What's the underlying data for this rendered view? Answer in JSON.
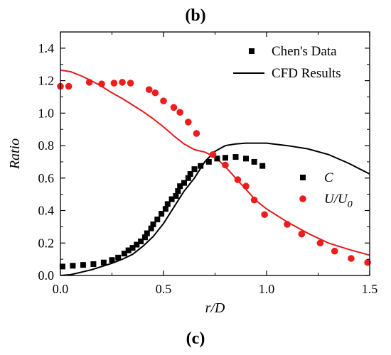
{
  "panel_label_top": "(b)",
  "panel_label_bottom": "(c)",
  "chart_data": {
    "type": "scatter",
    "title": "",
    "xlabel": "r/D",
    "ylabel": "Ratio",
    "xlim": [
      0,
      1.5
    ],
    "ylim": [
      0,
      1.5
    ],
    "xticks": [
      "0.0",
      "0.5",
      "1.0",
      "1.5"
    ],
    "yticks": [
      "0.0",
      "0.2",
      "0.4",
      "0.6",
      "0.8",
      "1.0",
      "1.2",
      "1.4"
    ],
    "grid": false,
    "legends": [
      {
        "position": "top-right",
        "entries": [
          {
            "label": "Chen's Data",
            "marker": "square",
            "color": "#000000"
          },
          {
            "label": "CFD Results",
            "marker": "line",
            "color": "#000000"
          }
        ]
      },
      {
        "position": "middle-right",
        "entries": [
          {
            "label_main": "C",
            "label_sub": "",
            "marker": "square",
            "color": "#000000"
          },
          {
            "label_main": "U/U",
            "label_sub": "0",
            "marker": "circle",
            "color": "#ee1c1c"
          }
        ]
      }
    ],
    "series": [
      {
        "marker": "square",
        "color": "#000000",
        "points": [
          [
            0.01,
            0.055
          ],
          [
            0.06,
            0.06
          ],
          [
            0.11,
            0.065
          ],
          [
            0.16,
            0.07
          ],
          [
            0.21,
            0.08
          ],
          [
            0.25,
            0.095
          ],
          [
            0.28,
            0.11
          ],
          [
            0.31,
            0.135
          ],
          [
            0.33,
            0.155
          ],
          [
            0.35,
            0.17
          ],
          [
            0.37,
            0.19
          ],
          [
            0.39,
            0.21
          ],
          [
            0.41,
            0.235
          ],
          [
            0.42,
            0.26
          ],
          [
            0.44,
            0.29
          ],
          [
            0.45,
            0.315
          ],
          [
            0.47,
            0.345
          ],
          [
            0.49,
            0.38
          ],
          [
            0.51,
            0.41
          ],
          [
            0.52,
            0.44
          ],
          [
            0.54,
            0.47
          ],
          [
            0.56,
            0.49
          ],
          [
            0.57,
            0.52
          ],
          [
            0.58,
            0.55
          ],
          [
            0.6,
            0.57
          ],
          [
            0.62,
            0.6
          ],
          [
            0.63,
            0.625
          ],
          [
            0.65,
            0.655
          ],
          [
            0.68,
            0.675
          ],
          [
            0.72,
            0.7
          ],
          [
            0.76,
            0.72
          ],
          [
            0.8,
            0.725
          ],
          [
            0.85,
            0.73
          ],
          [
            0.9,
            0.72
          ],
          [
            0.94,
            0.7
          ],
          [
            0.98,
            0.675
          ]
        ]
      },
      {
        "marker": "line",
        "color": "#000000",
        "points": [
          [
            0.0,
            0.0
          ],
          [
            0.05,
            0.005
          ],
          [
            0.1,
            0.02
          ],
          [
            0.15,
            0.035
          ],
          [
            0.2,
            0.055
          ],
          [
            0.25,
            0.075
          ],
          [
            0.3,
            0.1
          ],
          [
            0.35,
            0.13
          ],
          [
            0.4,
            0.18
          ],
          [
            0.45,
            0.24
          ],
          [
            0.5,
            0.32
          ],
          [
            0.55,
            0.42
          ],
          [
            0.6,
            0.52
          ],
          [
            0.65,
            0.6
          ],
          [
            0.7,
            0.7
          ],
          [
            0.75,
            0.765
          ],
          [
            0.8,
            0.8
          ],
          [
            0.85,
            0.81
          ],
          [
            0.9,
            0.815
          ],
          [
            1.0,
            0.815
          ],
          [
            1.1,
            0.8
          ],
          [
            1.2,
            0.78
          ],
          [
            1.3,
            0.745
          ],
          [
            1.4,
            0.69
          ],
          [
            1.5,
            0.625
          ]
        ]
      },
      {
        "marker": "circle",
        "color": "#ee1c1c",
        "points": [
          [
            0.0,
            1.165
          ],
          [
            0.04,
            1.165
          ],
          [
            0.14,
            1.19
          ],
          [
            0.2,
            1.18
          ],
          [
            0.26,
            1.185
          ],
          [
            0.3,
            1.19
          ],
          [
            0.34,
            1.185
          ],
          [
            0.43,
            1.145
          ],
          [
            0.46,
            1.125
          ],
          [
            0.5,
            1.075
          ],
          [
            0.55,
            1.035
          ],
          [
            0.58,
            1.005
          ],
          [
            0.62,
            0.945
          ],
          [
            0.66,
            0.875
          ],
          [
            0.74,
            0.745
          ],
          [
            0.8,
            0.68
          ],
          [
            0.86,
            0.59
          ],
          [
            0.9,
            0.55
          ],
          [
            0.94,
            0.465
          ],
          [
            0.99,
            0.375
          ],
          [
            1.1,
            0.315
          ],
          [
            1.17,
            0.255
          ],
          [
            1.26,
            0.2
          ],
          [
            1.33,
            0.15
          ],
          [
            1.41,
            0.105
          ],
          [
            1.49,
            0.08
          ]
        ]
      },
      {
        "marker": "line",
        "color": "#e31a1c",
        "points": [
          [
            0.0,
            1.265
          ],
          [
            0.05,
            1.255
          ],
          [
            0.1,
            1.23
          ],
          [
            0.15,
            1.2
          ],
          [
            0.2,
            1.165
          ],
          [
            0.25,
            1.125
          ],
          [
            0.3,
            1.09
          ],
          [
            0.35,
            1.05
          ],
          [
            0.4,
            1.01
          ],
          [
            0.45,
            0.965
          ],
          [
            0.5,
            0.915
          ],
          [
            0.55,
            0.86
          ],
          [
            0.6,
            0.81
          ],
          [
            0.65,
            0.775
          ],
          [
            0.7,
            0.76
          ],
          [
            0.75,
            0.73
          ],
          [
            0.8,
            0.67
          ],
          [
            0.85,
            0.6
          ],
          [
            0.9,
            0.53
          ],
          [
            0.95,
            0.46
          ],
          [
            1.0,
            0.41
          ],
          [
            1.1,
            0.33
          ],
          [
            1.2,
            0.26
          ],
          [
            1.3,
            0.2
          ],
          [
            1.4,
            0.16
          ],
          [
            1.5,
            0.125
          ]
        ]
      }
    ]
  }
}
